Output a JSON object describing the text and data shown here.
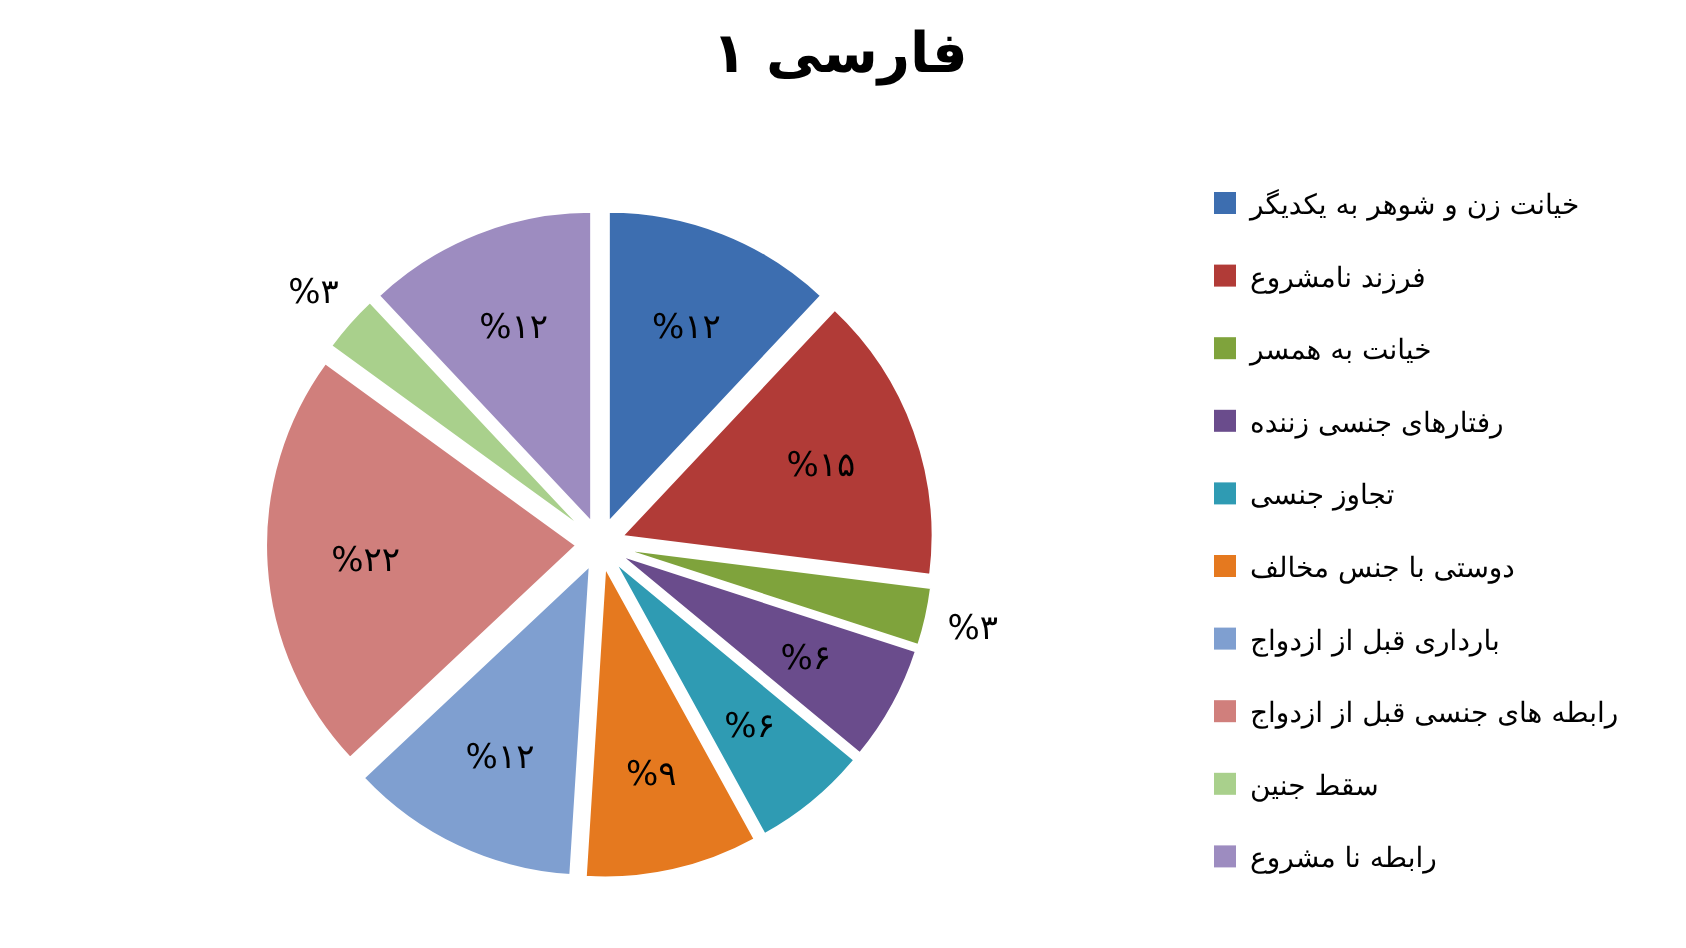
{
  "chart_data": {
    "type": "pie",
    "title": "فارسی ۱",
    "categories": [
      "خیانت زن و شوهر به یکدیگر",
      "فرزند نامشروع",
      "خیانت به همسر",
      "رفتارهای جنسی زننده",
      "تجاوز جنسی",
      "دوستی با جنس مخالف",
      "بارداری قبل از ازدواج",
      "رابطه های جنسی قبل از ازدواج",
      "سقط جنین",
      "رابطه نا مشروع"
    ],
    "values": [
      12,
      15,
      3,
      6,
      6,
      9,
      12,
      22,
      3,
      12
    ],
    "value_labels": [
      "%۱۲",
      "%۱۵",
      "%۳",
      "%۶",
      "%۶",
      "%۹",
      "%۱۲",
      "%۲۲",
      "%۳",
      "%۱۲"
    ],
    "colors": [
      "#3d6eb0",
      "#b13b37",
      "#7fa33c",
      "#6a4c8c",
      "#2f9bb3",
      "#e5791f",
      "#7f9fd0",
      "#d07f7c",
      "#a9d08c",
      "#9d8cc0"
    ],
    "legend": "right"
  }
}
